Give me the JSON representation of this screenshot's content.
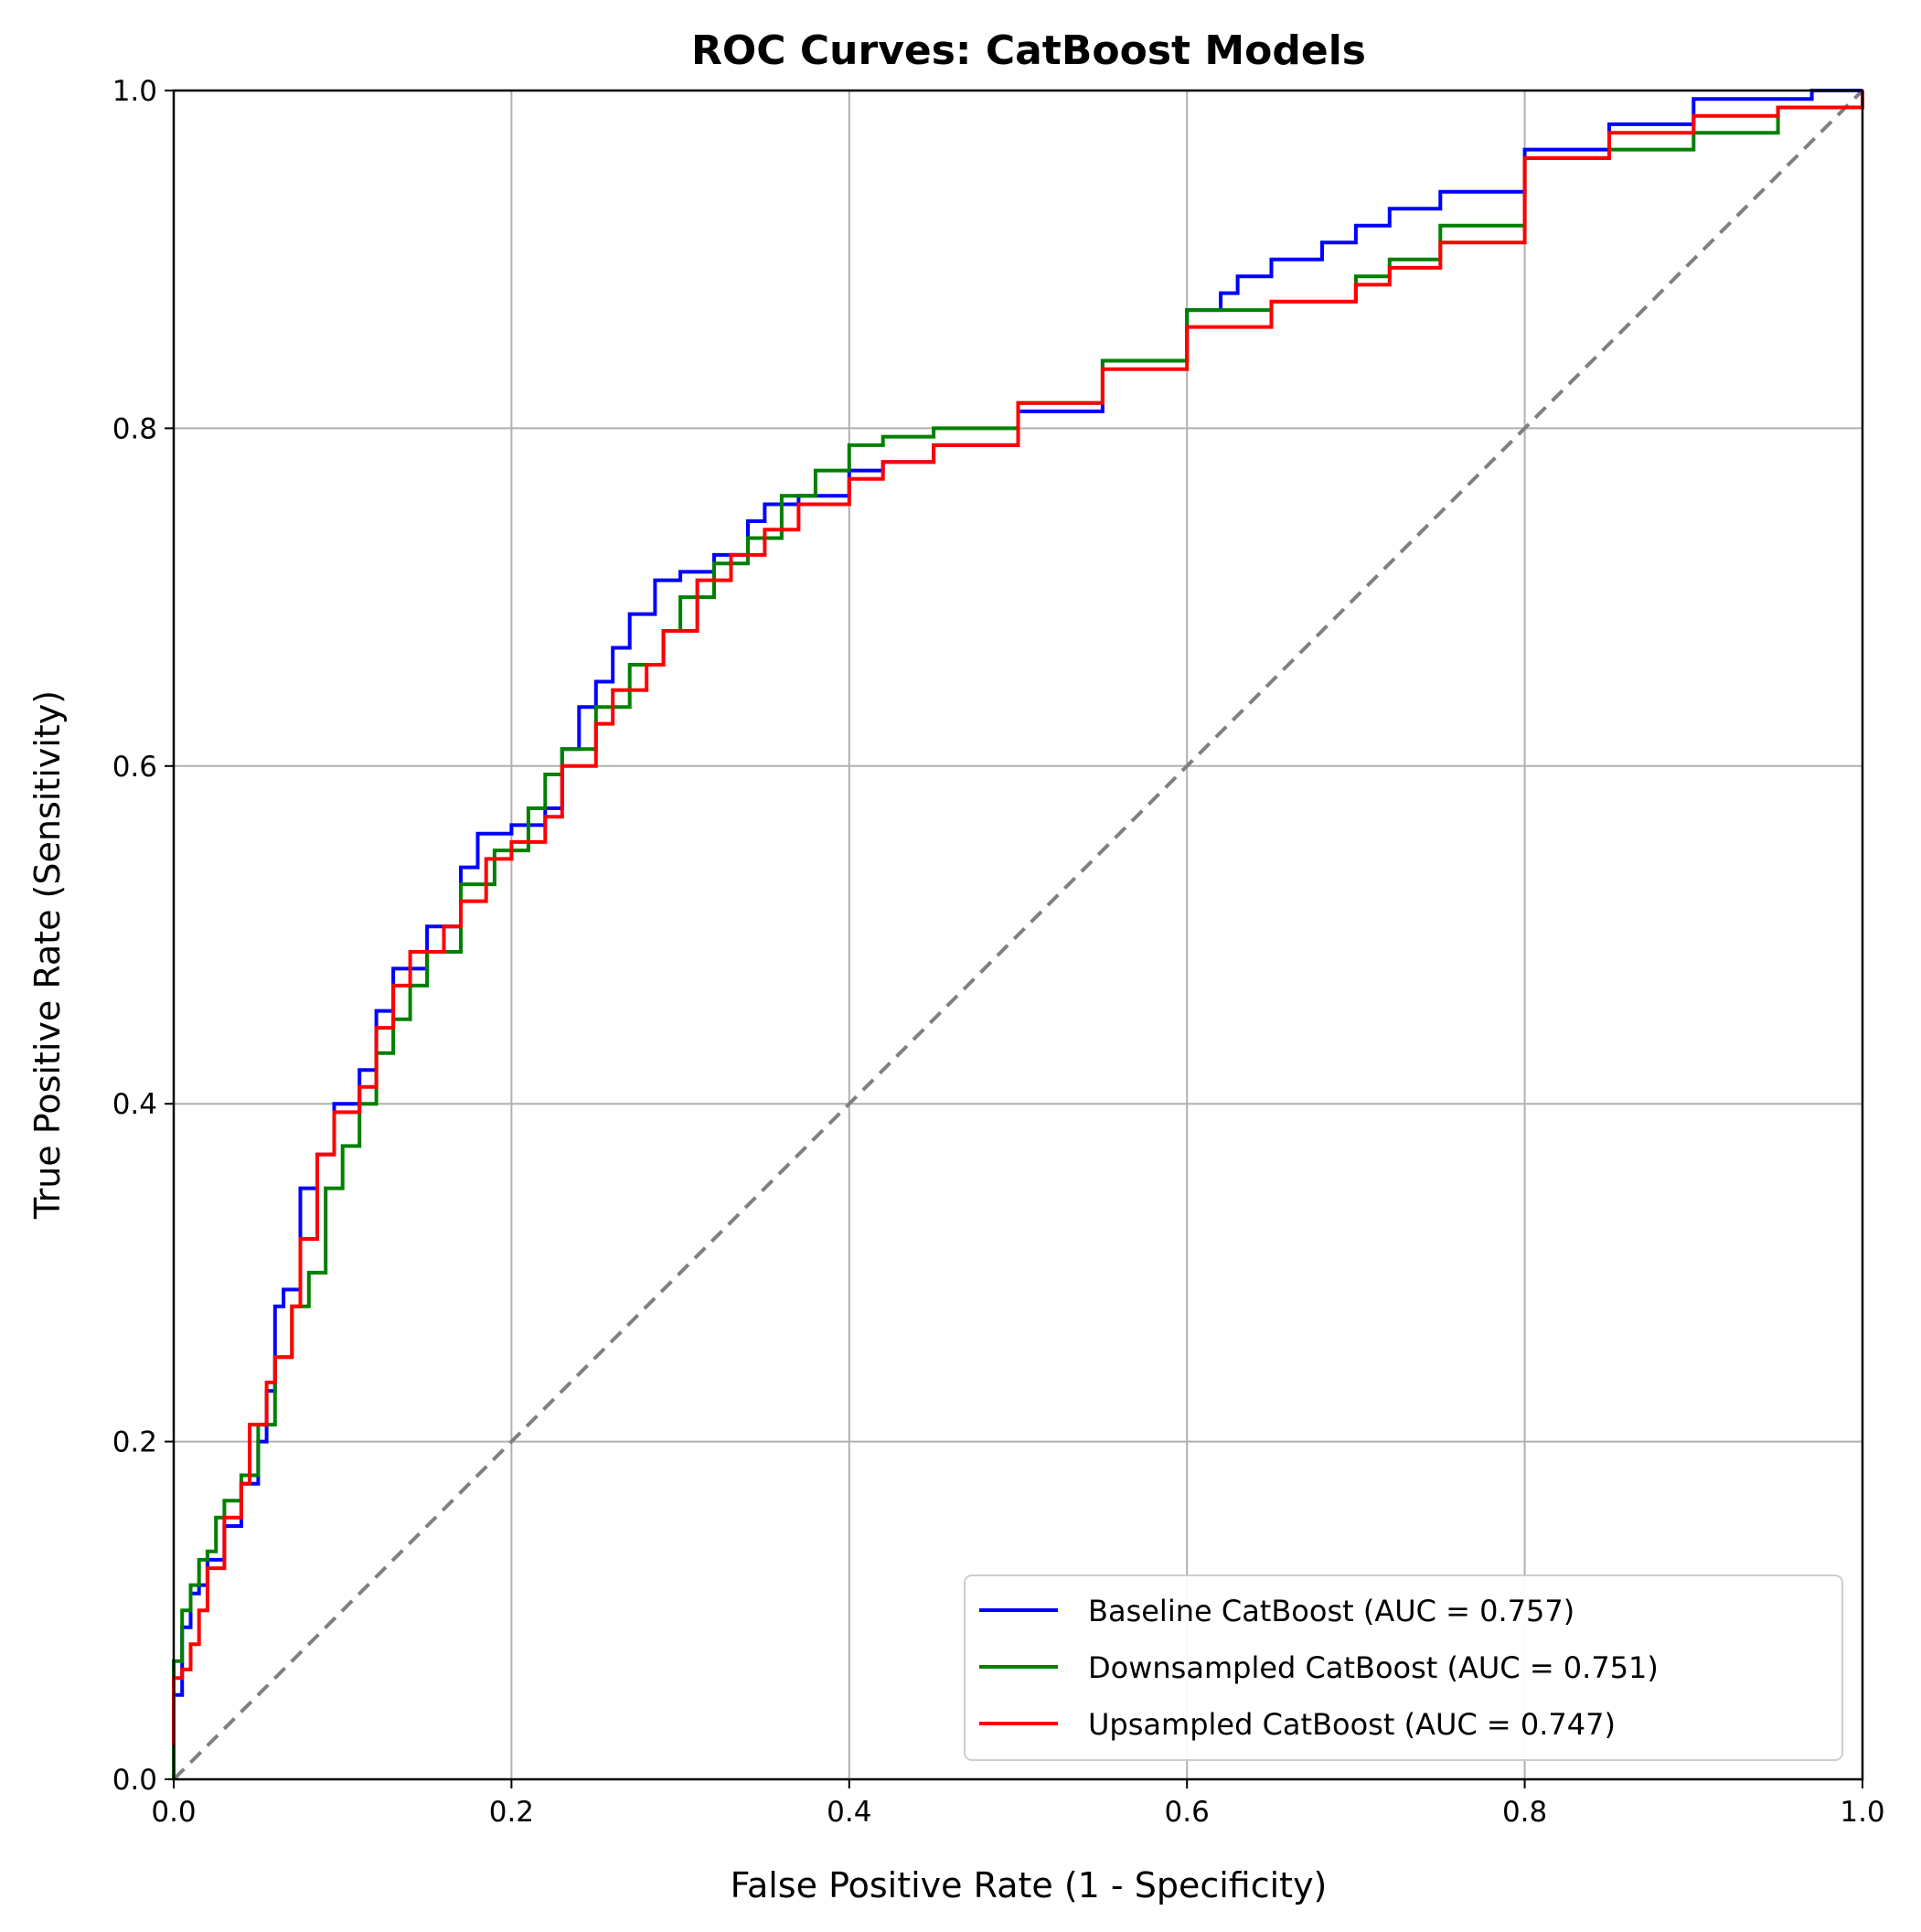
{
  "chart_data": {
    "type": "line",
    "title": "ROC Curves: CatBoost Models",
    "xlabel": "False Positive Rate (1 - Specificity)",
    "ylabel": "True Positive Rate (Sensitivity)",
    "xlim": [
      0,
      1
    ],
    "ylim": [
      0,
      1
    ],
    "xticks": [
      "0.0",
      "0.2",
      "0.4",
      "0.6",
      "0.8",
      "1.0"
    ],
    "yticks": [
      "0.0",
      "0.2",
      "0.4",
      "0.6",
      "0.8",
      "1.0"
    ],
    "grid": true,
    "legend_position": "lower-right",
    "series": [
      {
        "name": "Baseline CatBoost (AUC = 0.757)",
        "color": "#0000ff",
        "x": [
          0.0,
          0.0,
          0.005,
          0.01,
          0.015,
          0.02,
          0.03,
          0.04,
          0.05,
          0.055,
          0.06,
          0.065,
          0.075,
          0.085,
          0.095,
          0.11,
          0.12,
          0.13,
          0.15,
          0.17,
          0.18,
          0.2,
          0.22,
          0.23,
          0.24,
          0.25,
          0.26,
          0.27,
          0.285,
          0.3,
          0.32,
          0.34,
          0.35,
          0.37,
          0.4,
          0.42,
          0.45,
          0.5,
          0.55,
          0.6,
          0.62,
          0.63,
          0.65,
          0.68,
          0.7,
          0.72,
          0.75,
          0.8,
          0.85,
          0.9,
          0.97,
          1.0
        ],
        "y": [
          0.0,
          0.05,
          0.09,
          0.11,
          0.115,
          0.13,
          0.15,
          0.175,
          0.2,
          0.23,
          0.28,
          0.29,
          0.35,
          0.37,
          0.4,
          0.42,
          0.455,
          0.48,
          0.505,
          0.54,
          0.56,
          0.565,
          0.575,
          0.61,
          0.635,
          0.65,
          0.67,
          0.69,
          0.71,
          0.715,
          0.725,
          0.745,
          0.755,
          0.76,
          0.775,
          0.78,
          0.79,
          0.81,
          0.84,
          0.87,
          0.88,
          0.89,
          0.9,
          0.91,
          0.92,
          0.93,
          0.94,
          0.965,
          0.98,
          0.995,
          1.0,
          1.0
        ]
      },
      {
        "name": "Downsampled CatBoost (AUC = 0.751)",
        "color": "#008000",
        "x": [
          0.0,
          0.0,
          0.005,
          0.01,
          0.015,
          0.02,
          0.025,
          0.03,
          0.04,
          0.05,
          0.06,
          0.07,
          0.08,
          0.09,
          0.1,
          0.11,
          0.12,
          0.13,
          0.14,
          0.15,
          0.17,
          0.19,
          0.21,
          0.22,
          0.23,
          0.25,
          0.27,
          0.29,
          0.3,
          0.32,
          0.34,
          0.36,
          0.38,
          0.4,
          0.42,
          0.45,
          0.5,
          0.55,
          0.6,
          0.65,
          0.7,
          0.72,
          0.75,
          0.8,
          0.85,
          0.9,
          0.95,
          1.0
        ],
        "y": [
          0.0,
          0.07,
          0.1,
          0.115,
          0.13,
          0.135,
          0.155,
          0.165,
          0.18,
          0.21,
          0.25,
          0.28,
          0.3,
          0.35,
          0.375,
          0.4,
          0.43,
          0.45,
          0.47,
          0.49,
          0.53,
          0.55,
          0.575,
          0.595,
          0.61,
          0.635,
          0.66,
          0.68,
          0.7,
          0.72,
          0.735,
          0.76,
          0.775,
          0.79,
          0.795,
          0.8,
          0.815,
          0.84,
          0.87,
          0.875,
          0.89,
          0.9,
          0.92,
          0.96,
          0.965,
          0.975,
          0.99,
          1.0
        ]
      },
      {
        "name": "Upsampled CatBoost (AUC = 0.747)",
        "color": "#ff0000",
        "x": [
          0.0,
          0.0,
          0.005,
          0.01,
          0.015,
          0.02,
          0.03,
          0.04,
          0.045,
          0.055,
          0.06,
          0.07,
          0.075,
          0.085,
          0.095,
          0.11,
          0.12,
          0.13,
          0.14,
          0.16,
          0.17,
          0.185,
          0.2,
          0.22,
          0.23,
          0.25,
          0.26,
          0.28,
          0.29,
          0.31,
          0.33,
          0.35,
          0.37,
          0.4,
          0.42,
          0.45,
          0.5,
          0.55,
          0.6,
          0.65,
          0.7,
          0.72,
          0.75,
          0.8,
          0.85,
          0.9,
          0.95,
          1.0
        ],
        "y": [
          0.02,
          0.06,
          0.065,
          0.08,
          0.1,
          0.125,
          0.155,
          0.175,
          0.21,
          0.235,
          0.25,
          0.28,
          0.32,
          0.37,
          0.395,
          0.41,
          0.445,
          0.47,
          0.49,
          0.505,
          0.52,
          0.545,
          0.555,
          0.57,
          0.6,
          0.625,
          0.645,
          0.66,
          0.68,
          0.71,
          0.725,
          0.74,
          0.755,
          0.77,
          0.78,
          0.79,
          0.815,
          0.835,
          0.86,
          0.875,
          0.885,
          0.895,
          0.91,
          0.96,
          0.975,
          0.985,
          0.99,
          1.0
        ]
      }
    ],
    "reference_line": {
      "color": "#808080",
      "x": [
        0,
        1
      ],
      "y": [
        0,
        1
      ],
      "style": "dashed"
    }
  }
}
